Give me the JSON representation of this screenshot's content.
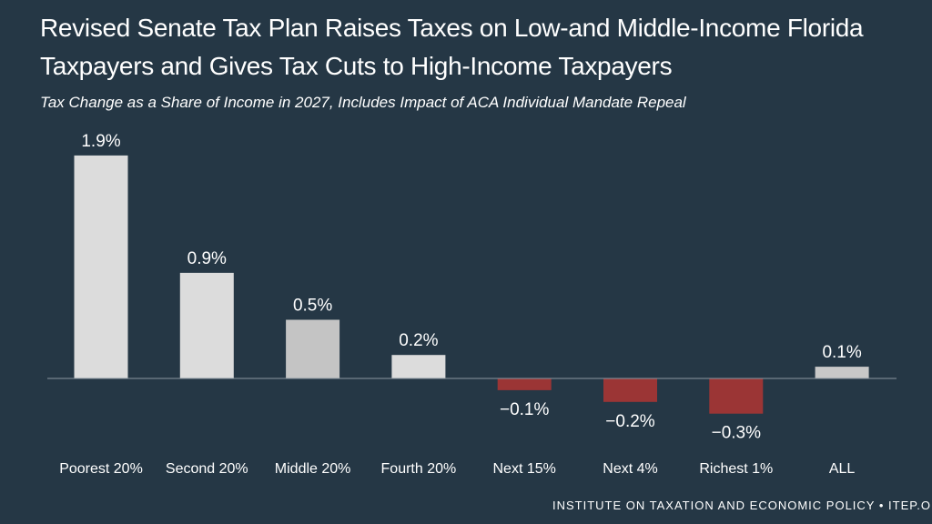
{
  "title_line1": "Revised Senate Tax Plan Raises Taxes on Low-and Middle-Income Florida",
  "title_line2": "Taxpayers and Gives Tax Cuts to High-Income Taxpayers",
  "subtitle": "Tax Change as a Share of Income in 2027, Includes Impact of ACA Individual Mandate Repeal",
  "footer": "INSTITUTE ON TAXATION AND ECONOMIC POLICY • ITEP.ORG",
  "colors": {
    "background": "#253745",
    "positive": "#dcdcdc",
    "positive_middle": "#c4c4c4",
    "negative": "#9b3535",
    "all": "#c8c8c8",
    "axis": "#8a97a1"
  },
  "chart_data": {
    "type": "bar",
    "title": "Revised Senate Tax Plan Raises Taxes on Low-and Middle-Income Florida Taxpayers and Gives Tax Cuts to High-Income Taxpayers",
    "xlabel": "",
    "ylabel": "Tax Change as a Share of Income",
    "categories": [
      "Poorest 20%",
      "Second 20%",
      "Middle 20%",
      "Fourth 20%",
      "Next 15%",
      "Next 4%",
      "Richest 1%",
      "ALL"
    ],
    "values": [
      1.9,
      0.9,
      0.5,
      0.2,
      -0.1,
      -0.2,
      -0.3,
      0.1
    ],
    "labels": [
      "1.9%",
      "0.9%",
      "0.5%",
      "0.2%",
      "−0.1%",
      "−0.2%",
      "−0.3%",
      "0.1%"
    ],
    "ylim": [
      -0.4,
      2.0
    ],
    "grid": false,
    "legend": "none"
  }
}
